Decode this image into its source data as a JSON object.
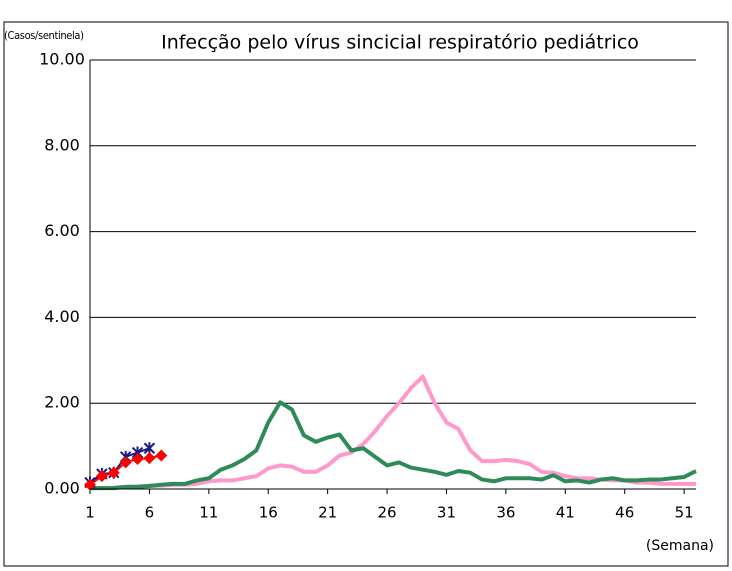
{
  "chart_data": {
    "type": "line",
    "title": "Infecção pelo vírus sincicial respiratório pediátrico",
    "y_label": "(Casos/sentinela)",
    "x_label": "(Semana)",
    "x": [
      1,
      2,
      3,
      4,
      5,
      6,
      7,
      8,
      9,
      10,
      11,
      12,
      13,
      14,
      15,
      16,
      17,
      18,
      19,
      20,
      21,
      22,
      23,
      24,
      25,
      26,
      27,
      28,
      29,
      30,
      31,
      32,
      33,
      34,
      35,
      36,
      37,
      38,
      39,
      40,
      41,
      42,
      43,
      44,
      45,
      46,
      47,
      48,
      49,
      50,
      51,
      52
    ],
    "xlim": [
      1,
      52
    ],
    "xticks": [
      1,
      6,
      11,
      16,
      21,
      26,
      31,
      36,
      41,
      46,
      51
    ],
    "ylim": [
      0,
      10
    ],
    "yticks": [
      {
        "value": 0,
        "label": "0.00"
      },
      {
        "value": 2,
        "label": "2.00"
      },
      {
        "value": 4,
        "label": "4.00"
      },
      {
        "value": 6,
        "label": "6.00"
      },
      {
        "value": 8,
        "label": "8.00"
      },
      {
        "value": 10,
        "label": "10.00"
      }
    ],
    "grid": true,
    "series": [
      {
        "color": "#ff99cc",
        "marker": "none",
        "values": [
          0.02,
          0.02,
          0.03,
          0.05,
          0.06,
          0.08,
          0.08,
          0.1,
          0.1,
          0.12,
          0.18,
          0.2,
          0.2,
          0.25,
          0.3,
          0.48,
          0.55,
          0.52,
          0.4,
          0.4,
          0.55,
          0.78,
          0.85,
          1.05,
          1.35,
          1.7,
          2.0,
          2.35,
          2.62,
          2.0,
          1.55,
          1.4,
          0.9,
          0.65,
          0.65,
          0.68,
          0.65,
          0.58,
          0.4,
          0.38,
          0.3,
          0.25,
          0.25,
          0.22,
          0.2,
          0.2,
          0.15,
          0.15,
          0.12,
          0.12,
          0.12,
          0.12
        ]
      },
      {
        "color": "#2e8b57",
        "marker": "none",
        "values": [
          0.02,
          0.02,
          0.02,
          0.05,
          0.05,
          0.07,
          0.1,
          0.12,
          0.12,
          0.2,
          0.25,
          0.45,
          0.55,
          0.7,
          0.9,
          1.55,
          2.02,
          1.85,
          1.25,
          1.1,
          1.2,
          1.27,
          0.9,
          0.95,
          0.75,
          0.55,
          0.62,
          0.5,
          0.45,
          0.4,
          0.33,
          0.42,
          0.38,
          0.22,
          0.18,
          0.25,
          0.25,
          0.25,
          0.22,
          0.32,
          0.18,
          0.2,
          0.15,
          0.22,
          0.25,
          0.2,
          0.2,
          0.22,
          0.22,
          0.25,
          0.28,
          0.42
        ]
      },
      {
        "color": "#1a1a80",
        "marker": "x",
        "values": [
          0.15,
          0.35,
          0.38,
          0.75,
          0.85,
          0.95,
          null,
          null,
          null,
          null,
          null,
          null,
          null,
          null,
          null,
          null,
          null,
          null,
          null,
          null,
          null,
          null,
          null,
          null,
          null,
          null,
          null,
          null,
          null,
          null,
          null,
          null,
          null,
          null,
          null,
          null,
          null,
          null,
          null,
          null,
          null,
          null,
          null,
          null,
          null,
          null,
          null,
          null,
          null,
          null,
          null,
          null
        ]
      },
      {
        "color": "#ff0000",
        "marker": "diamond",
        "values": [
          0.1,
          0.3,
          0.38,
          0.62,
          0.7,
          0.72,
          0.78,
          null,
          null,
          null,
          null,
          null,
          null,
          null,
          null,
          null,
          null,
          null,
          null,
          null,
          null,
          null,
          null,
          null,
          null,
          null,
          null,
          null,
          null,
          null,
          null,
          null,
          null,
          null,
          null,
          null,
          null,
          null,
          null,
          null,
          null,
          null,
          null,
          null,
          null,
          null,
          null,
          null,
          null,
          null,
          null,
          null
        ]
      }
    ]
  }
}
